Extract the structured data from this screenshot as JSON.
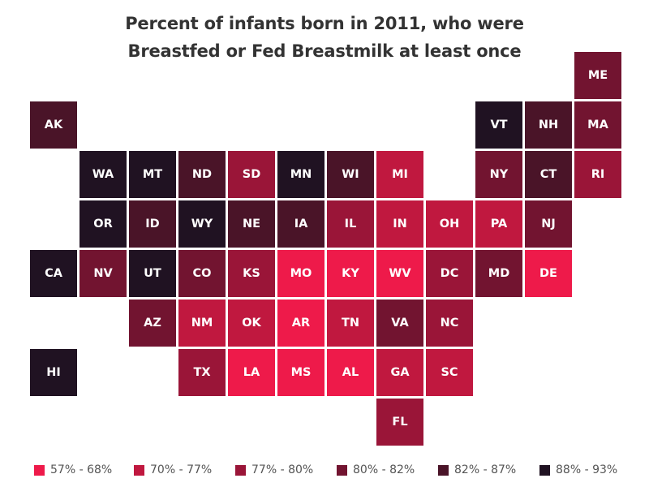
{
  "chart_data": {
    "type": "heatmap",
    "title_lines": [
      "Percent of infants born in 2011, who were",
      "Breastfed or Fed Breastmilk at least once"
    ],
    "legend": {
      "placement": "bottom",
      "bins": [
        {
          "label": "57% - 68%",
          "color": "#ee1a4a"
        },
        {
          "label": "70% - 77%",
          "color": "#c0183f"
        },
        {
          "label": "77% - 80%",
          "color": "#9a1538"
        },
        {
          "label": "80% - 82%",
          "color": "#721430"
        },
        {
          "label": "82% - 87%",
          "color": "#4a1428"
        },
        {
          "label": "88% - 93%",
          "color": "#201222"
        }
      ]
    },
    "tiles": [
      {
        "state": "ME",
        "col": 11,
        "row": 0,
        "bin": 3
      },
      {
        "state": "AK",
        "col": 0,
        "row": 1,
        "bin": 4
      },
      {
        "state": "VT",
        "col": 9,
        "row": 1,
        "bin": 5
      },
      {
        "state": "NH",
        "col": 10,
        "row": 1,
        "bin": 4
      },
      {
        "state": "MA",
        "col": 11,
        "row": 1,
        "bin": 3
      },
      {
        "state": "WA",
        "col": 1,
        "row": 2,
        "bin": 5
      },
      {
        "state": "MT",
        "col": 2,
        "row": 2,
        "bin": 5
      },
      {
        "state": "ND",
        "col": 3,
        "row": 2,
        "bin": 4
      },
      {
        "state": "SD",
        "col": 4,
        "row": 2,
        "bin": 2
      },
      {
        "state": "MN",
        "col": 5,
        "row": 2,
        "bin": 5
      },
      {
        "state": "WI",
        "col": 6,
        "row": 2,
        "bin": 4
      },
      {
        "state": "MI",
        "col": 7,
        "row": 2,
        "bin": 1
      },
      {
        "state": "NY",
        "col": 9,
        "row": 2,
        "bin": 3
      },
      {
        "state": "CT",
        "col": 10,
        "row": 2,
        "bin": 4
      },
      {
        "state": "RI",
        "col": 11,
        "row": 2,
        "bin": 2
      },
      {
        "state": "OR",
        "col": 1,
        "row": 3,
        "bin": 5
      },
      {
        "state": "ID",
        "col": 2,
        "row": 3,
        "bin": 4
      },
      {
        "state": "WY",
        "col": 3,
        "row": 3,
        "bin": 5
      },
      {
        "state": "NE",
        "col": 4,
        "row": 3,
        "bin": 4
      },
      {
        "state": "IA",
        "col": 5,
        "row": 3,
        "bin": 4
      },
      {
        "state": "IL",
        "col": 6,
        "row": 3,
        "bin": 2
      },
      {
        "state": "IN",
        "col": 7,
        "row": 3,
        "bin": 1
      },
      {
        "state": "OH",
        "col": 8,
        "row": 3,
        "bin": 1
      },
      {
        "state": "PA",
        "col": 9,
        "row": 3,
        "bin": 1
      },
      {
        "state": "NJ",
        "col": 10,
        "row": 3,
        "bin": 3
      },
      {
        "state": "CA",
        "col": 0,
        "row": 4,
        "bin": 5
      },
      {
        "state": "NV",
        "col": 1,
        "row": 4,
        "bin": 3
      },
      {
        "state": "UT",
        "col": 2,
        "row": 4,
        "bin": 5
      },
      {
        "state": "CO",
        "col": 3,
        "row": 4,
        "bin": 3
      },
      {
        "state": "KS",
        "col": 4,
        "row": 4,
        "bin": 2
      },
      {
        "state": "MO",
        "col": 5,
        "row": 4,
        "bin": 0
      },
      {
        "state": "KY",
        "col": 6,
        "row": 4,
        "bin": 0
      },
      {
        "state": "WV",
        "col": 7,
        "row": 4,
        "bin": 0
      },
      {
        "state": "DC",
        "col": 8,
        "row": 4,
        "bin": 2
      },
      {
        "state": "MD",
        "col": 9,
        "row": 4,
        "bin": 3
      },
      {
        "state": "DE",
        "col": 10,
        "row": 4,
        "bin": 0
      },
      {
        "state": "AZ",
        "col": 2,
        "row": 5,
        "bin": 3
      },
      {
        "state": "NM",
        "col": 3,
        "row": 5,
        "bin": 1
      },
      {
        "state": "OK",
        "col": 4,
        "row": 5,
        "bin": 1
      },
      {
        "state": "AR",
        "col": 5,
        "row": 5,
        "bin": 0
      },
      {
        "state": "TN",
        "col": 6,
        "row": 5,
        "bin": 1
      },
      {
        "state": "VA",
        "col": 7,
        "row": 5,
        "bin": 3
      },
      {
        "state": "NC",
        "col": 8,
        "row": 5,
        "bin": 2
      },
      {
        "state": "HI",
        "col": 0,
        "row": 6,
        "bin": 5
      },
      {
        "state": "TX",
        "col": 3,
        "row": 6,
        "bin": 2
      },
      {
        "state": "LA",
        "col": 4,
        "row": 6,
        "bin": 0
      },
      {
        "state": "MS",
        "col": 5,
        "row": 6,
        "bin": 0
      },
      {
        "state": "AL",
        "col": 6,
        "row": 6,
        "bin": 0
      },
      {
        "state": "GA",
        "col": 7,
        "row": 6,
        "bin": 1
      },
      {
        "state": "SC",
        "col": 8,
        "row": 6,
        "bin": 1
      },
      {
        "state": "FL",
        "col": 7,
        "row": 7,
        "bin": 2
      }
    ]
  }
}
